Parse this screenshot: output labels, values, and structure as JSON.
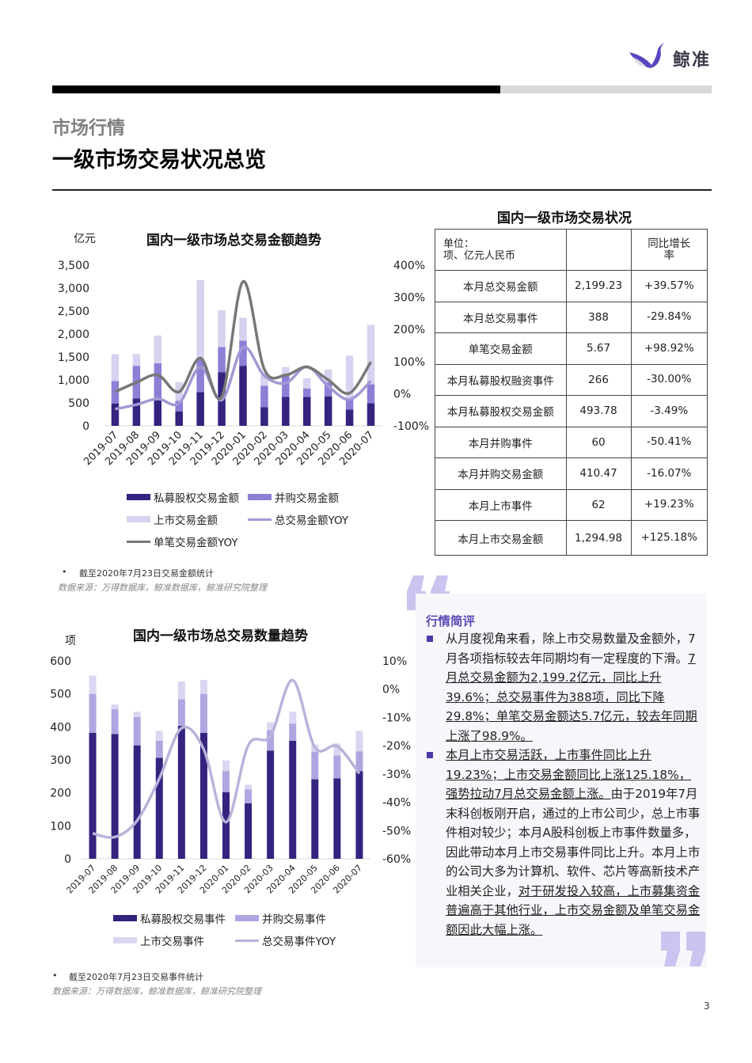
{
  "header": {
    "logo_text": "鲸准",
    "progress": 0.68,
    "section": "市场行情",
    "title": "一级市场交易状况总览"
  },
  "colors": {
    "dark": "#35237f",
    "mid1": "#8b7fd6",
    "light1": "#d6d2ef",
    "mid2": "#b0a5e0",
    "light2": "#dbd6f1",
    "gray_line": "#777777",
    "purple_line": "#a199d4",
    "yoy_line2": "#b9b3da",
    "accent": "#5b4bb5"
  },
  "chart_data": [
    {
      "type": "bar",
      "stacked": true,
      "title": "国内一级市场总交易金额趋势",
      "ylabel": "亿元",
      "categories": [
        "2019-07",
        "2019-08",
        "2019-09",
        "2019-10",
        "2019-11",
        "2019-12",
        "2020-01",
        "2020-02",
        "2020-03",
        "2020-04",
        "2020-05",
        "2020-06",
        "2020-07"
      ],
      "ylim": [
        0,
        3500
      ],
      "yticks": [
        "0",
        "500",
        "1,000",
        "1,500",
        "2,000",
        "2,500",
        "3,000",
        "3,500"
      ],
      "y2lim": [
        -100,
        400
      ],
      "y2ticks": [
        "-100%",
        "0%",
        "100%",
        "200%",
        "300%",
        "400%"
      ],
      "series": [
        {
          "name": "私募股权交易金额",
          "kind": "bar",
          "values": [
            488,
            597,
            557,
            316,
            734,
            1170,
            1308,
            407,
            631,
            631,
            643,
            356,
            493.78
          ]
        },
        {
          "name": "并购交易金额",
          "kind": "bar",
          "values": [
            487,
            711,
            808,
            229,
            716,
            545,
            545,
            465,
            488,
            184,
            304,
            218,
            410.47
          ]
        },
        {
          "name": "上市交易金额",
          "kind": "bar",
          "values": [
            585,
            252,
            603,
            407,
            1723,
            804,
            499,
            275,
            160,
            223,
            281,
            958,
            1294.98
          ]
        },
        {
          "name": "总交易金额YOY",
          "kind": "line",
          "axis": "right",
          "values": [
            -48,
            -34,
            -16,
            -30,
            83,
            -20,
            144,
            56,
            33,
            84,
            23,
            -18,
            39.57
          ]
        },
        {
          "name": "单笔交易金额YOY",
          "kind": "line",
          "axis": "right",
          "values": [
            6,
            35,
            58,
            6,
            111,
            -10,
            349,
            76,
            58,
            83,
            43,
            2,
            98.92
          ]
        }
      ],
      "legend": [
        "私募股权交易金额",
        "并购交易金额",
        "上市交易金额",
        "总交易金额YOY",
        "单笔交易金额YOY"
      ]
    },
    {
      "type": "bar",
      "stacked": true,
      "title": "国内一级市场总交易数量趋势",
      "ylabel": "项",
      "categories": [
        "2019-07",
        "2019-08",
        "2019-09",
        "2019-10",
        "2019-11",
        "2019-12",
        "2020-01",
        "2020-02",
        "2020-03",
        "2020-04",
        "2020-05",
        "2020-06",
        "2020-07"
      ],
      "ylim": [
        0,
        600
      ],
      "yticks": [
        "0",
        "100",
        "200",
        "300",
        "400",
        "500",
        "600"
      ],
      "y2lim": [
        -60,
        10
      ],
      "y2ticks": [
        "-60%",
        "-50%",
        "-40%",
        "-30%",
        "-20%",
        "-10%",
        "0%",
        "10%"
      ],
      "series": [
        {
          "name": "私募股权交易事件",
          "kind": "bar",
          "values": [
            382,
            378,
            344,
            306,
            403,
            382,
            202,
            168,
            328,
            358,
            241,
            244,
            266
          ]
        },
        {
          "name": "并购交易事件",
          "kind": "bar",
          "values": [
            118,
            76,
            86,
            52,
            81,
            118,
            64,
            42,
            62,
            52,
            84,
            69,
            60
          ]
        },
        {
          "name": "上市交易事件",
          "kind": "bar",
          "values": [
            56,
            14,
            16,
            30,
            54,
            42,
            32,
            15,
            24,
            36,
            21,
            37,
            62
          ]
        },
        {
          "name": "总交易事件YOY",
          "kind": "line",
          "axis": "right",
          "values": [
            -51,
            -52.3,
            -46.5,
            -31.6,
            -13.8,
            -21.3,
            -47,
            -19.9,
            -16.6,
            3.2,
            -20.6,
            -20.2,
            -29.84
          ]
        }
      ],
      "legend": [
        "私募股权交易事件",
        "并购交易事件",
        "上市交易事件",
        "总交易事件YOY"
      ]
    }
  ],
  "notes": {
    "chart1_note": "截至2020年7月23日交易金额统计",
    "chart1_source": "数据来源：万得数据库，鲸准数据库，鲸准研究院整理",
    "chart2_note": "截至2020年7月23日交易事件统计",
    "chart2_source": "数据来源：万得数据库，鲸准数据库，鲸准研究院整理",
    "bullet": "•"
  },
  "table": {
    "title": "国内一级市场交易状况",
    "header": {
      "unit": "单位：\n项、亿元人民币",
      "col2": "",
      "col3": "同比增长率"
    },
    "rows": [
      {
        "label": "本月总交易金额",
        "value": "2,199.23",
        "yoy": "+39.57%"
      },
      {
        "label": "本月总交易事件",
        "value": "388",
        "yoy": "-29.84%"
      },
      {
        "label": "单笔交易金额",
        "value": "5.67",
        "yoy": "+98.92%"
      },
      {
        "label": "本月私募股权融资事件",
        "value": "266",
        "yoy": "-30.00%"
      },
      {
        "label": "本月私募股权交易金额",
        "value": "493.78",
        "yoy": "-3.49%"
      },
      {
        "label": "本月并购事件",
        "value": "60",
        "yoy": "-50.41%"
      },
      {
        "label": "本月并购交易金额",
        "value": "410.47",
        "yoy": "-16.07%"
      },
      {
        "label": "本月上市事件",
        "value": "62",
        "yoy": "+19.23%"
      },
      {
        "label": "本月上市交易金额",
        "value": "1,294.98",
        "yoy": "+125.18%"
      }
    ]
  },
  "commentary": {
    "title": "行情简评",
    "p1": [
      {
        "text": "从月度视角来看，除上市交易数量及金额外，7月各项指标较去年同期均有一定程度的下滑。",
        "u": false
      },
      {
        "text": "7月总交易金额为2,199.2亿元，同比上升39.6%；总交易事件为388项，同比下降29.8%；单笔交易金额达5.7亿元，较去年同期上涨了98.9%。",
        "u": true
      }
    ],
    "p2": [
      {
        "text": "本月上市交易活跃，上市事件同比上升19.23%；上市交易金额同比上涨125.18%，强势拉动7月总交易金额上涨。",
        "u": true
      },
      {
        "text": "由于2019年7月末科创板刚开启，通过的上市公司少，总上市事件相对较少；本月A股科创板上市事件数量多，因此带动本月上市交易事件同比上升。本月上市的公司大多为计算机、软件、芯片等高新技术产业相关企业，",
        "u": false
      },
      {
        "text": "对于研发投入较高，上市募集资金普遍高于其他行业，上市交易金额及单笔交易金额因此大幅上涨。",
        "u": true
      }
    ]
  },
  "page_number": "3"
}
